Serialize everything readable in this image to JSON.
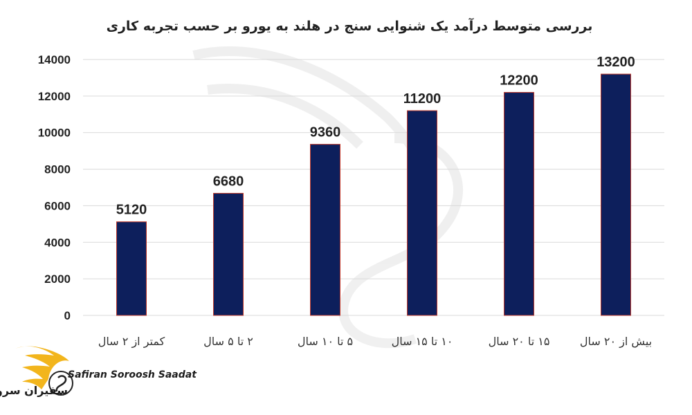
{
  "chart_data": {
    "type": "bar",
    "title": "بررسی متوسط درآمد یک شنوایی سنج در هلند به یورو بر حسب تجربه کاری",
    "categories": [
      "کمتر از ۲ سال",
      "۲ تا ۵ سال",
      "۵ تا ۱۰ سال",
      "۱۰ تا ۱۵ سال",
      "۱۵ تا ۲۰ سال",
      "بیش از ۲۰ سال"
    ],
    "values": [
      5120,
      6680,
      9360,
      11200,
      12200,
      13200
    ],
    "ylim": [
      0,
      14000
    ],
    "yticks": [
      0,
      2000,
      4000,
      6000,
      8000,
      10000,
      12000,
      14000
    ],
    "grid": true,
    "bar_color": "#0d1f5c",
    "bar_edge_color": "#c0392b"
  },
  "logo": {
    "name_en": "Safiran Soroosh Saadat",
    "name_fa": "سفیران سروش سعادت",
    "accent_color": "#f2b51c"
  }
}
